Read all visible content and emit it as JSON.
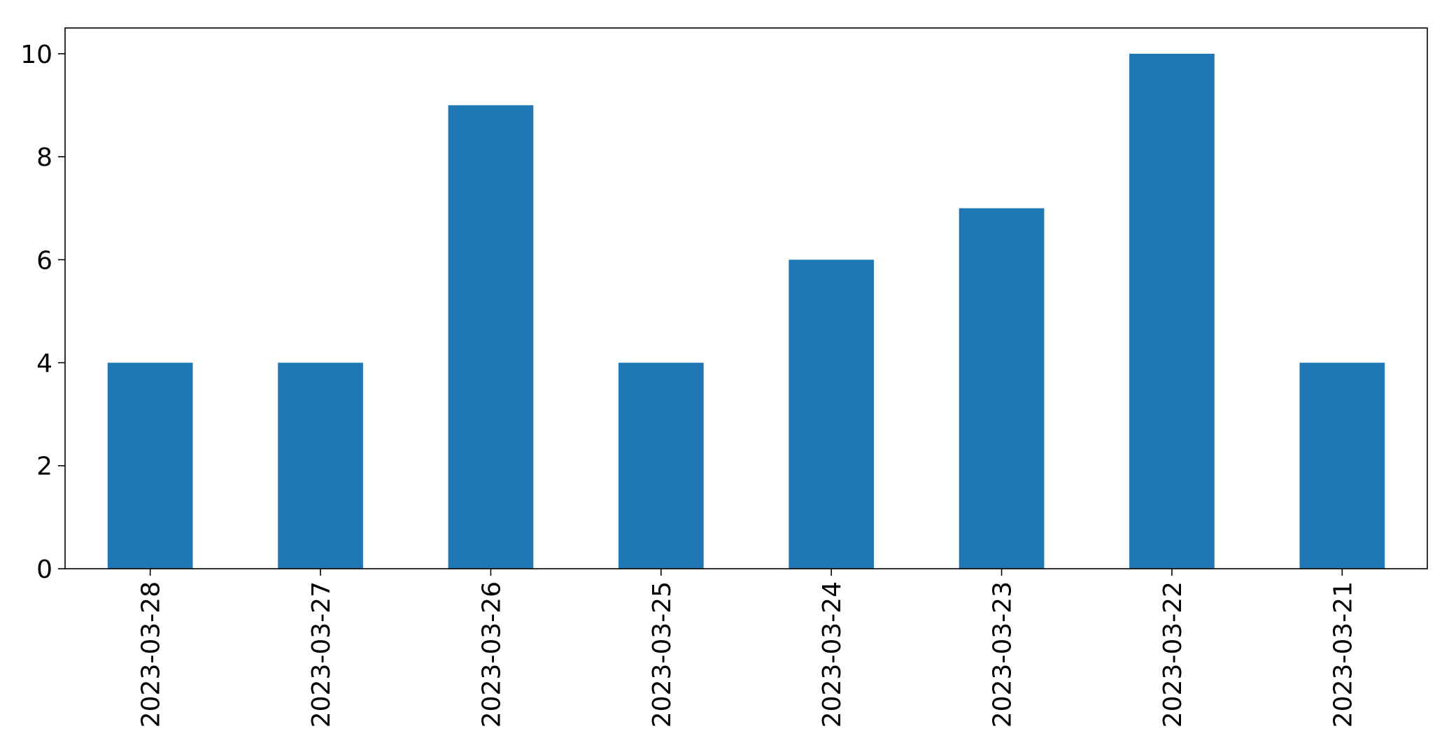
{
  "chart_data": {
    "type": "bar",
    "categories": [
      "2023-03-28",
      "2023-03-27",
      "2023-03-26",
      "2023-03-25",
      "2023-03-24",
      "2023-03-23",
      "2023-03-22",
      "2023-03-21"
    ],
    "values": [
      4,
      4,
      9,
      4,
      6,
      7,
      10,
      4
    ],
    "title": "",
    "xlabel": "",
    "ylabel": "",
    "ylim": [
      0,
      10.5
    ],
    "yticks": [
      0,
      2,
      4,
      6,
      8,
      10
    ],
    "grid": false,
    "legend": "none",
    "bar_color": "#1f77b4"
  }
}
